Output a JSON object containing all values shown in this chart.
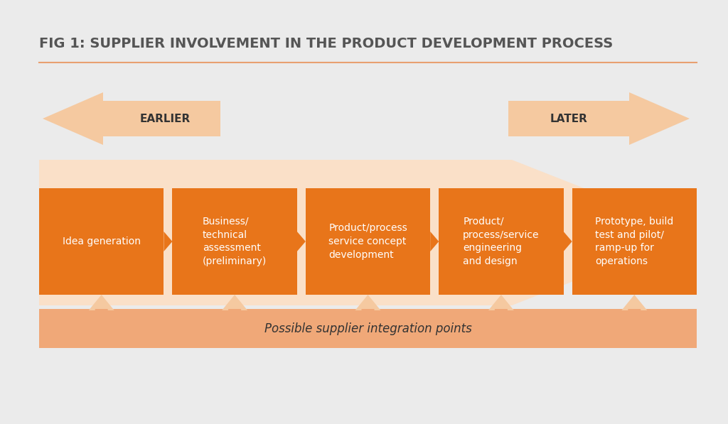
{
  "title": "FIG 1: SUPPLIER INVOLVEMENT IN THE PRODUCT DEVELOPMENT PROCESS",
  "bg_color": "#ebebeb",
  "orange_dark": "#E8751A",
  "orange_light": "#F5C9A0",
  "orange_lighter": "#FAE0C8",
  "orange_bar": "#F0A878",
  "white": "#ffffff",
  "stages": [
    "Idea generation",
    "Business/\ntechnical\nassessment\n(preliminary)",
    "Product/process\nservice concept\ndevelopment",
    "Product/\nprocess/service\nengineering\nand design",
    "Prototype, build\ntest and pilot/\nramp-up for\noperations"
  ],
  "stage_text_colors": [
    "#ffffff",
    "#ffffff",
    "#ffffff",
    "#ffffff",
    "#ffffff"
  ],
  "bottom_bar_text": "Possible supplier integration points",
  "earlier_text": "EARLIER",
  "later_text": "LATER",
  "title_underline_color": "#E8A070",
  "title_color": "#555555"
}
